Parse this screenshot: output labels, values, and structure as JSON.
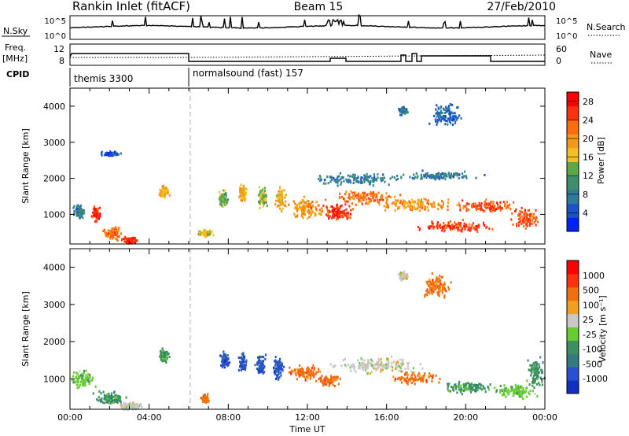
{
  "header": {
    "station": "Rankin Inlet (fitACF)",
    "beam": "Beam 15",
    "date": "27/Feb/2010"
  },
  "sky_panel": {
    "left_label": "N.Sky",
    "left_ticks": [
      "10^5",
      "10^0"
    ],
    "right_label": "N.Search",
    "right_ticks": [
      "10^5",
      "10^0"
    ]
  },
  "freq_panel": {
    "left_label_1": "Freq.",
    "left_label_2": "[MHz]",
    "left_ticks": [
      "12",
      "8"
    ],
    "right_label": "Nave",
    "right_ticks": [
      "60",
      "0"
    ]
  },
  "cpid_panel": {
    "label": "CPID",
    "segments": [
      {
        "start_hour": 0.0,
        "text": "themis 3300"
      },
      {
        "start_hour": 6.0,
        "text": "normalsound (fast) 157"
      }
    ]
  },
  "chart_data": [
    {
      "type": "heatmap",
      "name": "power",
      "ylabel": "Slant Range [km]",
      "xlabel": "",
      "yticks": [
        "1000",
        "2000",
        "3000",
        "4000"
      ],
      "yticks_km": [
        1000,
        2000,
        3000,
        4000
      ],
      "ylim": [
        180,
        4500
      ],
      "xlim_hours": [
        0,
        24
      ],
      "colorbar": {
        "label": "Power [dB]",
        "ticks": [
          "4",
          "8",
          "12",
          "16",
          "20",
          "24",
          "28"
        ],
        "tick_values": [
          4,
          8,
          12,
          16,
          20,
          24,
          28
        ],
        "range": [
          0,
          30
        ],
        "colors": [
          "#0020ff",
          "#1a52c8",
          "#2e7a9a",
          "#3c8f6a",
          "#5aa84a",
          "#f0c020",
          "#f29a18",
          "#ff6a10",
          "#ff3010",
          "#ff0000"
        ]
      },
      "blobs": [
        {
          "t": 0.4,
          "r": 1100,
          "dt": 0.35,
          "dr": 250,
          "v": 8
        },
        {
          "t": 1.3,
          "r": 1050,
          "dt": 0.25,
          "dr": 260,
          "v": 26
        },
        {
          "t": 2.2,
          "r": 500,
          "dt": 0.7,
          "dr": 220,
          "v": 22
        },
        {
          "t": 3.0,
          "r": 300,
          "dt": 0.5,
          "dr": 120,
          "v": 26
        },
        {
          "t": 4.7,
          "r": 1650,
          "dt": 0.35,
          "dr": 230,
          "v": 18
        },
        {
          "t": 6.8,
          "r": 500,
          "dt": 0.5,
          "dr": 120,
          "v": 16
        },
        {
          "t": 7.7,
          "r": 1500,
          "dt": 0.3,
          "dr": 300,
          "v": 14
        },
        {
          "t": 8.7,
          "r": 1600,
          "dt": 0.22,
          "dr": 350,
          "v": 18
        },
        {
          "t": 9.7,
          "r": 1500,
          "dt": 0.3,
          "dr": 350,
          "v": 14
        },
        {
          "t": 10.6,
          "r": 1450,
          "dt": 0.35,
          "dr": 420,
          "v": 18
        },
        {
          "t": 12.0,
          "r": 1200,
          "dt": 1.2,
          "dr": 380,
          "v": 20
        },
        {
          "t": 13.5,
          "r": 1050,
          "dt": 1.0,
          "dr": 300,
          "v": 26
        },
        {
          "t": 15.0,
          "r": 1500,
          "dt": 2.0,
          "dr": 250,
          "v": 22
        },
        {
          "t": 17.5,
          "r": 1300,
          "dt": 2.5,
          "dr": 250,
          "v": 20
        },
        {
          "t": 19.5,
          "r": 700,
          "dt": 2.5,
          "dr": 200,
          "v": 25
        },
        {
          "t": 21.0,
          "r": 1250,
          "dt": 2.0,
          "dr": 220,
          "v": 24
        },
        {
          "t": 23.0,
          "r": 900,
          "dt": 0.8,
          "dr": 350,
          "v": 24
        },
        {
          "t": 14.5,
          "r": 2000,
          "dt": 3.0,
          "dr": 200,
          "v": 8
        },
        {
          "t": 18.5,
          "r": 2100,
          "dt": 2.5,
          "dr": 150,
          "v": 8
        },
        {
          "t": 16.8,
          "r": 3900,
          "dt": 0.3,
          "dr": 150,
          "v": 8
        },
        {
          "t": 19.0,
          "r": 3800,
          "dt": 1.0,
          "dr": 400,
          "v": 6
        },
        {
          "t": 2.0,
          "r": 2700,
          "dt": 0.6,
          "dr": 100,
          "v": 4
        }
      ]
    },
    {
      "type": "heatmap",
      "name": "velocity",
      "ylabel": "Slant Range [km]",
      "xlabel": "Time UT",
      "yticks": [
        "1000",
        "2000",
        "3000",
        "4000"
      ],
      "yticks_km": [
        1000,
        2000,
        3000,
        4000
      ],
      "ylim": [
        180,
        4500
      ],
      "xlim_hours": [
        0,
        24
      ],
      "xticks": [
        "00:00",
        "04:00",
        "08:00",
        "12:00",
        "16:00",
        "20:00",
        "00:00"
      ],
      "xticks_hours": [
        0,
        4,
        8,
        12,
        16,
        20,
        24
      ],
      "colorbar": {
        "label": "Velocity [m s⁻¹]",
        "ticks": [
          "1000",
          "500",
          "100",
          "25",
          "-25",
          "-100",
          "-500",
          "-1000"
        ],
        "colors": [
          "#1030c0",
          "#2850d0",
          "#307a80",
          "#3c9060",
          "#66cc30",
          "#c8c8c8",
          "#f0a020",
          "#f07010",
          "#ff3010",
          "#ff0000"
        ]
      },
      "blobs": [
        {
          "t": 0.6,
          "r": 1000,
          "dt": 0.8,
          "dr": 300,
          "v": 4
        },
        {
          "t": 2.0,
          "r": 500,
          "dt": 1.0,
          "dr": 250,
          "v": 3
        },
        {
          "t": 3.0,
          "r": 300,
          "dt": 0.8,
          "dr": 150,
          "v": 5
        },
        {
          "t": 4.7,
          "r": 1650,
          "dt": 0.35,
          "dr": 240,
          "v": 3
        },
        {
          "t": 6.8,
          "r": 500,
          "dt": 0.3,
          "dr": 150,
          "v": 7
        },
        {
          "t": 7.8,
          "r": 1500,
          "dt": 0.3,
          "dr": 300,
          "v": 1
        },
        {
          "t": 8.7,
          "r": 1450,
          "dt": 0.25,
          "dr": 350,
          "v": 1
        },
        {
          "t": 9.6,
          "r": 1400,
          "dt": 0.3,
          "dr": 350,
          "v": 1
        },
        {
          "t": 10.5,
          "r": 1350,
          "dt": 0.35,
          "dr": 380,
          "v": 1
        },
        {
          "t": 11.8,
          "r": 1200,
          "dt": 1.0,
          "dr": 250,
          "v": 7
        },
        {
          "t": 13.0,
          "r": 1000,
          "dt": 0.8,
          "dr": 200,
          "v": 7
        },
        {
          "t": 15.5,
          "r": 1400,
          "dt": 3.0,
          "dr": 300,
          "v": 5
        },
        {
          "t": 17.5,
          "r": 1050,
          "dt": 1.5,
          "dr": 200,
          "v": 7
        },
        {
          "t": 20.0,
          "r": 800,
          "dt": 2.0,
          "dr": 200,
          "v": 3
        },
        {
          "t": 22.5,
          "r": 700,
          "dt": 1.2,
          "dr": 250,
          "v": 4
        },
        {
          "t": 23.5,
          "r": 1200,
          "dt": 0.6,
          "dr": 500,
          "v": 3
        },
        {
          "t": 16.8,
          "r": 3800,
          "dt": 0.3,
          "dr": 150,
          "v": 5
        },
        {
          "t": 18.5,
          "r": 3500,
          "dt": 1.0,
          "dr": 400,
          "v": 7
        }
      ]
    }
  ]
}
